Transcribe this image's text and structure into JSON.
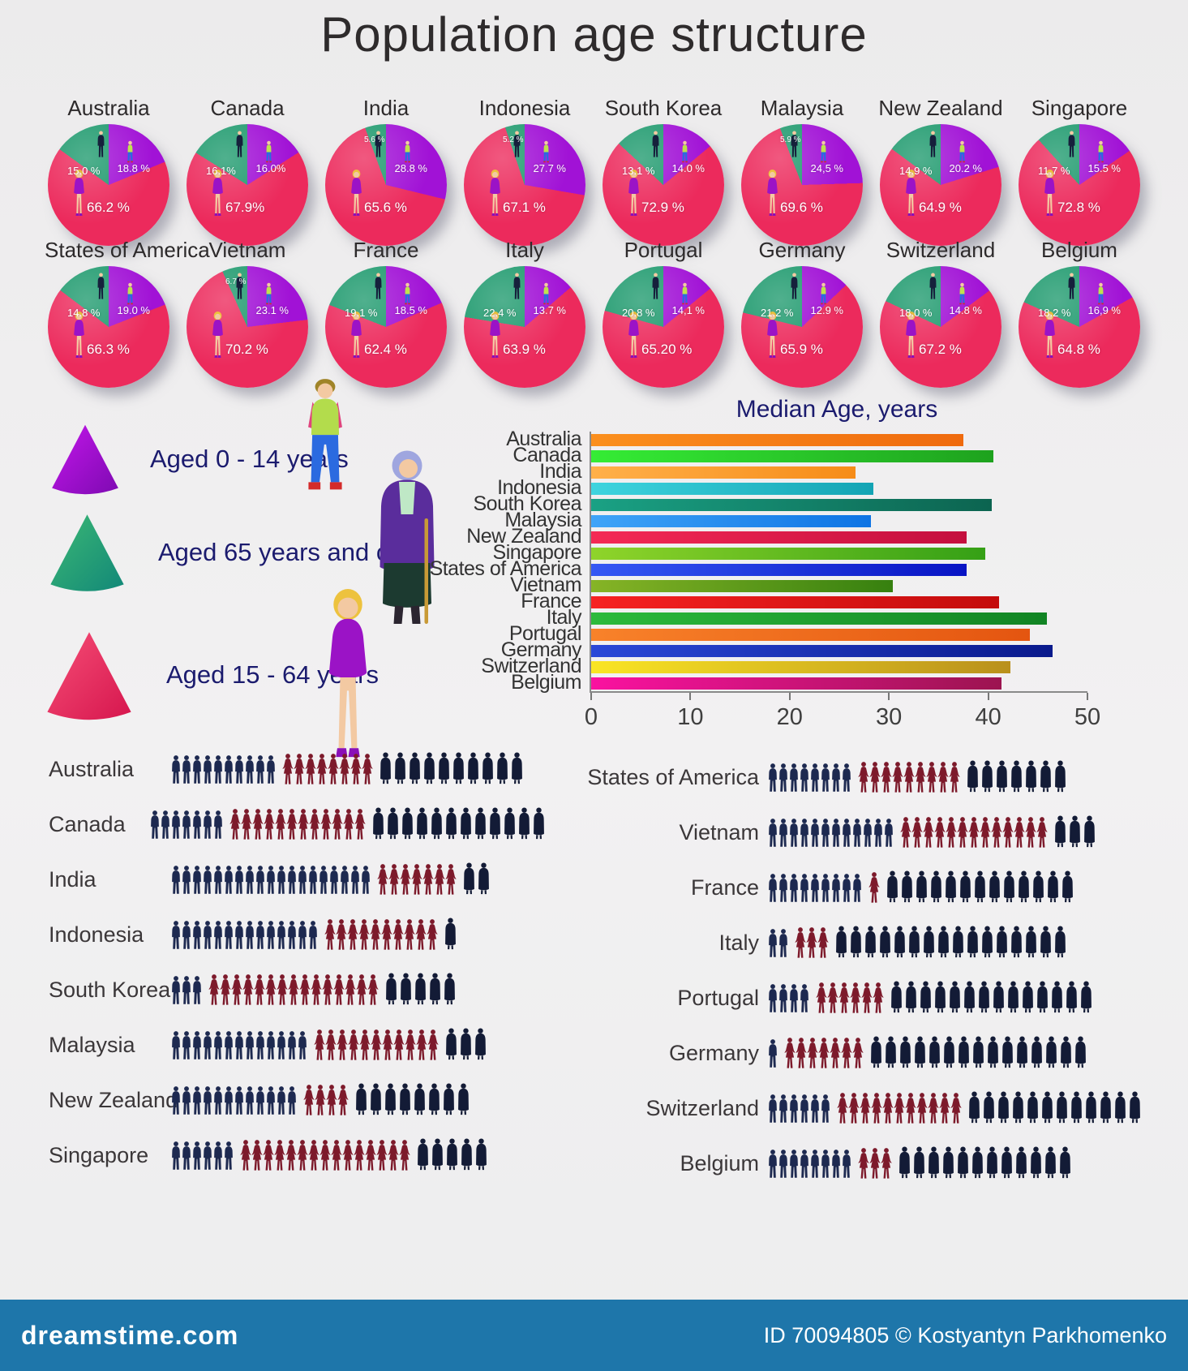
{
  "title": "Population age structure",
  "legend": {
    "items": [
      {
        "label": "Aged 0 - 14 years",
        "color": "#a112d6",
        "shape": "cone"
      },
      {
        "label": "Aged  65 years and over",
        "color": "#1f9a6e",
        "shape": "cone"
      },
      {
        "label": "Aged 15 - 64  years",
        "color": "#ec2a5c",
        "shape": "cone"
      }
    ]
  },
  "chart_data": [
    {
      "type": "pie",
      "title": "Population age structure by country (%)",
      "slices": [
        "Aged 0 - 14 years",
        "Aged 15 - 64 years",
        "Aged 65 years and over"
      ],
      "slice_colors": {
        "aged_0_14": "#a112d6",
        "aged_15_64": "#ec2a5c",
        "aged_65_over": "#1f9a6e"
      },
      "countries": [
        {
          "name": "Australia",
          "aged_0_14": 18.8,
          "aged_15_64": 66.2,
          "aged_65_over": 15.0,
          "labels": {
            "aged_0_14": "18.8 %",
            "aged_15_64": "66.2 %",
            "aged_65_over": "15.0 %"
          }
        },
        {
          "name": "Canada",
          "aged_0_14": 16.0,
          "aged_15_64": 67.9,
          "aged_65_over": 16.1,
          "labels": {
            "aged_0_14": "16.0%",
            "aged_15_64": "67.9%",
            "aged_65_over": "16.1%"
          }
        },
        {
          "name": "India",
          "aged_0_14": 28.8,
          "aged_15_64": 65.6,
          "aged_65_over": 5.6,
          "labels": {
            "aged_0_14": "28.8 %",
            "aged_15_64": "65.6 %",
            "aged_65_over": "5.6 %"
          }
        },
        {
          "name": "Indonesia",
          "aged_0_14": 27.7,
          "aged_15_64": 67.1,
          "aged_65_over": 5.2,
          "labels": {
            "aged_0_14": "27.7 %",
            "aged_15_64": "67.1 %",
            "aged_65_over": "5.2 %"
          }
        },
        {
          "name": "South Korea",
          "aged_0_14": 14.0,
          "aged_15_64": 72.9,
          "aged_65_over": 13.1,
          "labels": {
            "aged_0_14": "14.0 %",
            "aged_15_64": "72.9 %",
            "aged_65_over": "13.1 %"
          }
        },
        {
          "name": "Malaysia",
          "aged_0_14": 24.5,
          "aged_15_64": 69.6,
          "aged_65_over": 5.9,
          "labels": {
            "aged_0_14": "24,5 %",
            "aged_15_64": "69.6 %",
            "aged_65_over": "5.9 %"
          }
        },
        {
          "name": "New Zealand",
          "aged_0_14": 20.2,
          "aged_15_64": 64.9,
          "aged_65_over": 14.9,
          "labels": {
            "aged_0_14": "20.2 %",
            "aged_15_64": "64.9 %",
            "aged_65_over": "14.9 %"
          }
        },
        {
          "name": "Singapore",
          "aged_0_14": 15.5,
          "aged_15_64": 72.8,
          "aged_65_over": 11.7,
          "labels": {
            "aged_0_14": "15.5 %",
            "aged_15_64": "72.8 %",
            "aged_65_over": "11.7 %"
          }
        },
        {
          "name": "States of America",
          "aged_0_14": 19.0,
          "aged_15_64": 66.3,
          "aged_65_over": 14.8,
          "labels": {
            "aged_0_14": "19.0 %",
            "aged_15_64": "66.3 %",
            "aged_65_over": "14.8 %"
          }
        },
        {
          "name": "Vietnam",
          "aged_0_14": 23.1,
          "aged_15_64": 70.2,
          "aged_65_over": 6.7,
          "labels": {
            "aged_0_14": "23.1 %",
            "aged_15_64": "70.2 %",
            "aged_65_over": "6.7 %"
          }
        },
        {
          "name": "France",
          "aged_0_14": 18.5,
          "aged_15_64": 62.4,
          "aged_65_over": 19.1,
          "labels": {
            "aged_0_14": "18.5 %",
            "aged_15_64": "62.4 %",
            "aged_65_over": "19.1 %"
          }
        },
        {
          "name": "Italy",
          "aged_0_14": 13.7,
          "aged_15_64": 63.9,
          "aged_65_over": 22.4,
          "labels": {
            "aged_0_14": "13.7 %",
            "aged_15_64": "63.9 %",
            "aged_65_over": "22.4 %"
          }
        },
        {
          "name": "Portugal",
          "aged_0_14": 14.1,
          "aged_15_64": 65.2,
          "aged_65_over": 20.8,
          "labels": {
            "aged_0_14": "14,1 %",
            "aged_15_64": "65.20 %",
            "aged_65_over": "20.8 %"
          }
        },
        {
          "name": "Germany",
          "aged_0_14": 12.9,
          "aged_15_64": 65.9,
          "aged_65_over": 21.2,
          "labels": {
            "aged_0_14": "12.9 %",
            "aged_15_64": "65.9 %",
            "aged_65_over": "21.2 %"
          }
        },
        {
          "name": "Switzerland",
          "aged_0_14": 14.8,
          "aged_15_64": 67.2,
          "aged_65_over": 18.0,
          "labels": {
            "aged_0_14": "14.8 %",
            "aged_15_64": "67.2 %",
            "aged_65_over": "18.0 %"
          }
        },
        {
          "name": "Belgium",
          "aged_0_14": 16.9,
          "aged_15_64": 64.8,
          "aged_65_over": 18.2,
          "labels": {
            "aged_0_14": "16,9 %",
            "aged_15_64": "64.8 %",
            "aged_65_over": "18.2 %"
          }
        }
      ]
    },
    {
      "type": "bar",
      "orientation": "horizontal",
      "title": "Median Age, years",
      "categories": [
        "Australia",
        "Canada",
        "India",
        "Indonesia",
        "South Korea",
        "Malaysia",
        "New Zealand",
        "Singapore",
        "States of America",
        "Vietnam",
        "France",
        "Italy",
        "Portugal",
        "Germany",
        "Switzerland",
        "Belgium"
      ],
      "values": [
        37.5,
        40.5,
        26.6,
        28.4,
        40.4,
        28.2,
        37.8,
        39.7,
        37.8,
        30.4,
        41.1,
        45.9,
        44.2,
        46.5,
        42.2,
        41.3
      ],
      "xlim": [
        0,
        50
      ],
      "xticks": [
        0,
        10,
        20,
        30,
        40,
        50
      ],
      "xtick_labels": [
        "0",
        "10",
        "20",
        "30",
        "40",
        "50"
      ],
      "grid": false,
      "legend_position": "none",
      "bar_colors": [
        [
          "#fb8f1e",
          "#ef6a0e"
        ],
        [
          "#35ec35",
          "#1ea21e"
        ],
        [
          "#ffb04a",
          "#f68c18"
        ],
        [
          "#3fd4de",
          "#14a4b4"
        ],
        [
          "#1aa184",
          "#0c6450"
        ],
        [
          "#3fa4f8",
          "#0e74e4"
        ],
        [
          "#f42a55",
          "#c40f3e"
        ],
        [
          "#8fd42a",
          "#35a016"
        ],
        [
          "#3558f4",
          "#0814c4"
        ],
        [
          "#86b426",
          "#36800f"
        ],
        [
          "#f62222",
          "#c40c0c"
        ],
        [
          "#2cba3c",
          "#128424"
        ],
        [
          "#f8822a",
          "#e45510"
        ],
        [
          "#2a48d8",
          "#0a1a8c"
        ],
        [
          "#fae524",
          "#b9901c"
        ],
        [
          "#fa12a0",
          "#9c1450"
        ]
      ]
    }
  ],
  "pictograms": {
    "icon_types": {
      "men": "man-silhouette",
      "women": "woman-silhouette",
      "elderly": "elderly-silhouette"
    },
    "icon_colors": {
      "men": "#1d2950",
      "women": "#7d1a2b",
      "elderly": "#131b36"
    },
    "columns": [
      {
        "rows": [
          {
            "name": "Australia",
            "men": 10,
            "women": 8,
            "elderly": 10
          },
          {
            "name": "Canada",
            "men": 7,
            "women": 12,
            "elderly": 12
          },
          {
            "name": "India",
            "men": 19,
            "women": 7,
            "elderly": 2
          },
          {
            "name": "Indonesia",
            "men": 14,
            "women": 10,
            "elderly": 1
          },
          {
            "name": "South Korea",
            "men": 3,
            "women": 15,
            "elderly": 5
          },
          {
            "name": "Malaysia",
            "men": 13,
            "women": 11,
            "elderly": 3
          },
          {
            "name": "New Zealand",
            "men": 12,
            "women": 4,
            "elderly": 8
          },
          {
            "name": "Singapore",
            "men": 6,
            "women": 15,
            "elderly": 5
          }
        ]
      },
      {
        "rows": [
          {
            "name": "States of America",
            "men": 8,
            "women": 9,
            "elderly": 7
          },
          {
            "name": "Vietnam",
            "men": 12,
            "women": 13,
            "elderly": 3
          },
          {
            "name": "France",
            "men": 9,
            "women": 1,
            "elderly": 13
          },
          {
            "name": "Italy",
            "men": 2,
            "women": 3,
            "elderly": 16
          },
          {
            "name": "Portugal",
            "men": 4,
            "women": 6,
            "elderly": 14
          },
          {
            "name": "Germany",
            "men": 1,
            "women": 7,
            "elderly": 15
          },
          {
            "name": "Switzerland",
            "men": 6,
            "women": 11,
            "elderly": 12
          },
          {
            "name": "Belgium",
            "men": 8,
            "women": 3,
            "elderly": 12
          }
        ]
      }
    ]
  },
  "footer": {
    "site": "dreamstime.com",
    "credit": "ID 70094805 © Kostyantyn Parkhomenko",
    "bar_color": "#1e76aa"
  }
}
